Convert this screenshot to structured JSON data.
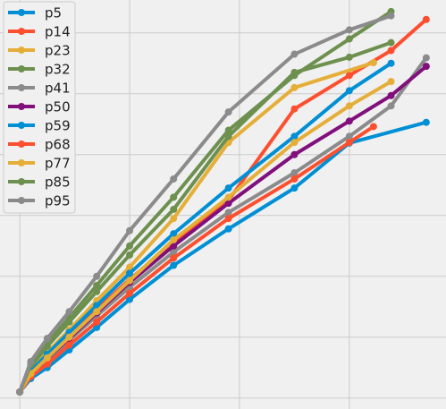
{
  "chart_data": {
    "type": "line",
    "xlim": [
      -0.18,
      3.88
    ],
    "ylim": [
      -0.18,
      6.54
    ],
    "xticks": [
      0,
      1,
      2,
      3
    ],
    "yticks": [
      0,
      1,
      2,
      3,
      4,
      5,
      6
    ],
    "grid": true,
    "legend": "upper left",
    "series": [
      {
        "name": "p5",
        "color": "#008fd5",
        "x": [
          0,
          0.1,
          0.25,
          0.45,
          0.7,
          1.0,
          1.4,
          1.9,
          2.5,
          3.0,
          3.7
        ],
        "values": [
          0.1,
          0.32,
          0.5,
          0.79,
          1.16,
          1.62,
          2.18,
          2.78,
          3.45,
          4.19,
          4.53
        ]
      },
      {
        "name": "p14",
        "color": "#fc4f30",
        "x": [
          0,
          0.1,
          0.25,
          0.45,
          0.7,
          1.0,
          1.4,
          1.9,
          2.5,
          3.0,
          3.38,
          3.7
        ],
        "values": [
          0.1,
          0.42,
          0.68,
          1.02,
          1.45,
          1.95,
          2.55,
          3.25,
          4.75,
          5.3,
          5.71,
          6.22
        ]
      },
      {
        "name": "p23",
        "color": "#e5ae38",
        "x": [
          0,
          0.1,
          0.25,
          0.45,
          0.7,
          1.0,
          1.4,
          1.9,
          2.5,
          3.22
        ],
        "values": [
          0.1,
          0.45,
          0.75,
          1.12,
          1.6,
          2.15,
          2.95,
          4.2,
          5.1,
          5.51
        ]
      },
      {
        "name": "p32",
        "color": "#6d904f",
        "x": [
          0,
          0.1,
          0.25,
          0.45,
          0.7,
          1.0,
          1.4,
          1.9,
          2.5,
          3.0,
          3.38
        ],
        "values": [
          0.1,
          0.52,
          0.85,
          1.25,
          1.75,
          2.35,
          3.1,
          4.3,
          5.35,
          5.6,
          5.84
        ]
      },
      {
        "name": "p41",
        "color": "#8b8b8b",
        "x": [
          0,
          0.1,
          0.25,
          0.45,
          0.7,
          1.0,
          1.4,
          1.9,
          2.5,
          3.0,
          3.38,
          3.7
        ],
        "values": [
          0.1,
          0.38,
          0.62,
          0.95,
          1.35,
          1.82,
          2.4,
          3.05,
          3.7,
          4.3,
          4.8,
          5.59
        ]
      },
      {
        "name": "p50",
        "color": "#810f7c",
        "x": [
          0,
          0.1,
          0.25,
          0.45,
          0.7,
          1.0,
          1.4,
          1.9,
          2.5,
          3.0,
          3.38,
          3.7
        ],
        "values": [
          0.1,
          0.4,
          0.65,
          0.98,
          1.4,
          1.9,
          2.5,
          3.2,
          4.0,
          4.55,
          4.97,
          5.45
        ]
      },
      {
        "name": "p59",
        "color": "#008fd5",
        "x": [
          0,
          0.1,
          0.25,
          0.45,
          0.7,
          1.0,
          1.4,
          1.9,
          2.5,
          3.0,
          3.38
        ],
        "values": [
          0.1,
          0.44,
          0.72,
          1.08,
          1.52,
          2.05,
          2.7,
          3.45,
          4.3,
          5.05,
          5.5
        ]
      },
      {
        "name": "p68",
        "color": "#fc4f30",
        "x": [
          0,
          0.1,
          0.25,
          0.45,
          0.7,
          1.0,
          1.4,
          1.9,
          2.5,
          3.0,
          3.22
        ],
        "values": [
          0.1,
          0.35,
          0.56,
          0.87,
          1.25,
          1.72,
          2.3,
          2.95,
          3.6,
          4.2,
          4.46
        ]
      },
      {
        "name": "p77",
        "color": "#e5ae38",
        "x": [
          0,
          0.1,
          0.25,
          0.45,
          0.7,
          1.0,
          1.4,
          1.9,
          2.5,
          3.0,
          3.38
        ],
        "values": [
          0.1,
          0.4,
          0.66,
          1.0,
          1.42,
          1.93,
          2.6,
          3.3,
          4.2,
          4.8,
          5.2
        ]
      },
      {
        "name": "p85",
        "color": "#6d904f",
        "x": [
          0,
          0.1,
          0.25,
          0.45,
          0.7,
          1.0,
          1.4,
          1.9,
          2.5,
          3.0,
          3.38
        ],
        "values": [
          0.1,
          0.55,
          0.9,
          1.32,
          1.85,
          2.5,
          3.3,
          4.4,
          5.3,
          5.9,
          6.35
        ]
      },
      {
        "name": "p95",
        "color": "#8b8b8b",
        "x": [
          0,
          0.1,
          0.25,
          0.45,
          0.7,
          1.0,
          1.4,
          1.9,
          2.5,
          3.0,
          3.38
        ],
        "values": [
          0.1,
          0.6,
          0.98,
          1.42,
          2.0,
          2.75,
          3.6,
          4.7,
          5.65,
          6.05,
          6.28
        ]
      }
    ]
  }
}
